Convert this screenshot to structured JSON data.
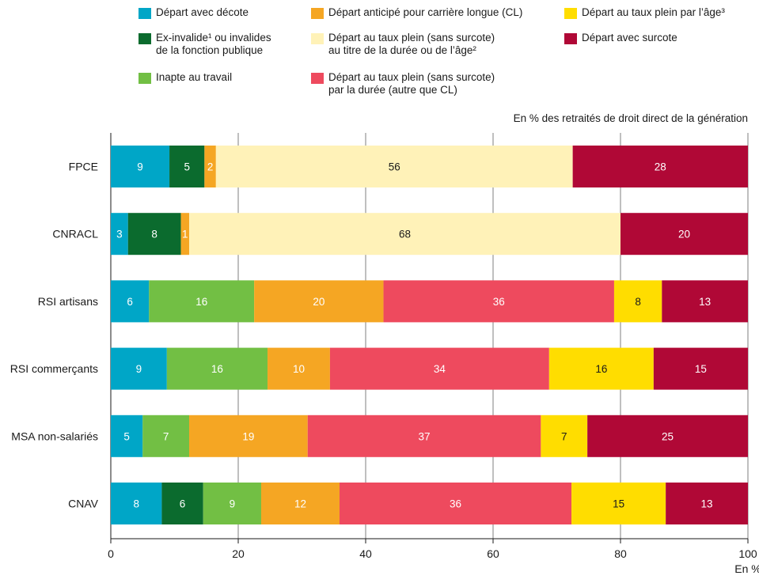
{
  "chart_data": {
    "type": "bar",
    "orientation": "horizontal",
    "stacked": true,
    "unit_note": "En % des retraités de droit direct de la génération",
    "xlabel": "En %",
    "xlim": [
      0,
      100
    ],
    "xticks": [
      "0",
      "20",
      "40",
      "60",
      "80",
      "100"
    ],
    "grid": true,
    "legend_position": "top",
    "legend": [
      {
        "key": "decote",
        "label": "Départ avec décote",
        "color": "#00a6c7"
      },
      {
        "key": "cl",
        "label": "Départ anticipé pour carrière longue (CL)",
        "color": "#f5a623"
      },
      {
        "key": "age",
        "label": "Départ au taux plein par l’âge³",
        "color": "#ffdd00"
      },
      {
        "key": "invalide",
        "label": "Ex-invalide¹ ou invalides\nde la fonction publique",
        "color": "#0b6b2e"
      },
      {
        "key": "duree_age",
        "label": "Départ au taux plein (sans surcote)\nau titre de la durée ou de l’âge²",
        "color": "#fff2b8"
      },
      {
        "key": "surcote",
        "label": "Départ avec surcote",
        "color": "#b00836"
      },
      {
        "key": "inapte",
        "label": "Inapte au travail",
        "color": "#72bf44"
      },
      {
        "key": "duree",
        "label": "Départ au taux plein (sans surcote)\npar la durée (autre que CL)",
        "color": "#ee4a5e"
      }
    ],
    "categories": [
      "FPCE",
      "CNRACL",
      "RSI artisans",
      "RSI commerçants",
      "MSA non-salariés",
      "CNAV"
    ],
    "bars": [
      {
        "category": "FPCE",
        "segments": [
          {
            "key": "decote",
            "value": 9.2,
            "label": "9"
          },
          {
            "key": "invalide",
            "value": 5.5,
            "label": "5"
          },
          {
            "key": "cl",
            "value": 1.8,
            "label": "2"
          },
          {
            "key": "duree_age",
            "value": 56,
            "label": "56"
          },
          {
            "key": "surcote",
            "value": 27.5,
            "label": "28"
          }
        ]
      },
      {
        "category": "CNRACL",
        "segments": [
          {
            "key": "decote",
            "value": 2.7,
            "label": "3"
          },
          {
            "key": "invalide",
            "value": 8.3,
            "label": "8"
          },
          {
            "key": "cl",
            "value": 1.3,
            "label": "1"
          },
          {
            "key": "duree_age",
            "value": 67.7,
            "label": "68"
          },
          {
            "key": "surcote",
            "value": 20,
            "label": "20"
          }
        ]
      },
      {
        "category": "RSI artisans",
        "segments": [
          {
            "key": "decote",
            "value": 6,
            "label": "6"
          },
          {
            "key": "inapte",
            "value": 16.5,
            "label": "16"
          },
          {
            "key": "cl",
            "value": 20.3,
            "label": "20"
          },
          {
            "key": "duree",
            "value": 36.2,
            "label": "36"
          },
          {
            "key": "age",
            "value": 7.5,
            "label": "8"
          },
          {
            "key": "surcote",
            "value": 13.5,
            "label": "13"
          }
        ]
      },
      {
        "category": "RSI commerçants",
        "segments": [
          {
            "key": "decote",
            "value": 8.8,
            "label": "9"
          },
          {
            "key": "inapte",
            "value": 15.8,
            "label": "16"
          },
          {
            "key": "cl",
            "value": 9.8,
            "label": "10"
          },
          {
            "key": "duree",
            "value": 34.4,
            "label": "34"
          },
          {
            "key": "age",
            "value": 16.4,
            "label": "16"
          },
          {
            "key": "surcote",
            "value": 14.8,
            "label": "15"
          }
        ]
      },
      {
        "category": "MSA non-salariés",
        "segments": [
          {
            "key": "decote",
            "value": 5,
            "label": "5"
          },
          {
            "key": "inapte",
            "value": 7.3,
            "label": "7"
          },
          {
            "key": "cl",
            "value": 18.6,
            "label": "19"
          },
          {
            "key": "duree",
            "value": 36.6,
            "label": "37"
          },
          {
            "key": "age",
            "value": 7.3,
            "label": "7"
          },
          {
            "key": "surcote",
            "value": 25.2,
            "label": "25"
          }
        ]
      },
      {
        "category": "CNAV",
        "segments": [
          {
            "key": "decote",
            "value": 8,
            "label": "8"
          },
          {
            "key": "invalide",
            "value": 6.5,
            "label": "6"
          },
          {
            "key": "inapte",
            "value": 9.1,
            "label": "9"
          },
          {
            "key": "cl",
            "value": 12.3,
            "label": "12"
          },
          {
            "key": "duree",
            "value": 36.4,
            "label": "36"
          },
          {
            "key": "age",
            "value": 14.8,
            "label": "15"
          },
          {
            "key": "surcote",
            "value": 12.9,
            "label": "13"
          }
        ]
      }
    ]
  }
}
